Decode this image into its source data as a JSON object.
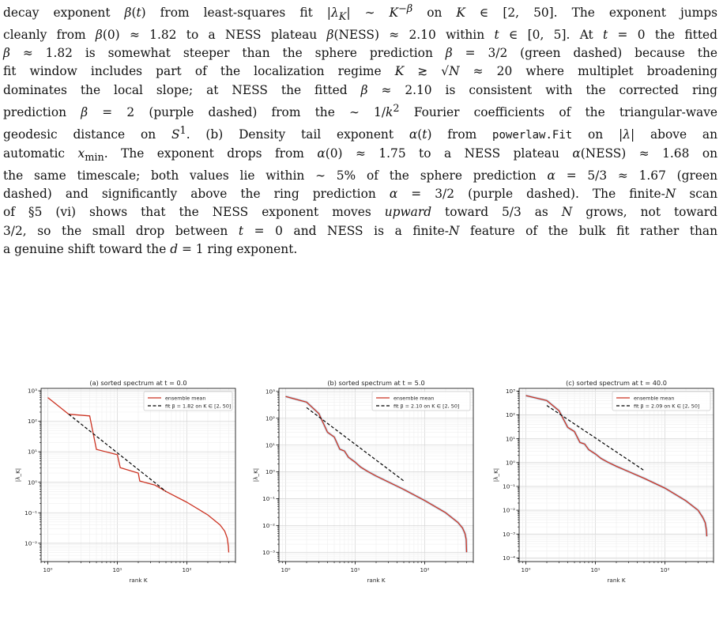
{
  "paragraph": {
    "lines": [
      "decay exponent β(t) from least-squares fit |λ_K| ∼ K^{−β} on K ∈ [2, 50]. The exponent jumps",
      "cleanly from β(0) ≈ 1.82 to a NESS plateau β(NESS) ≈ 2.10 within t ∈ [0, 5]. At t = 0 the fitted",
      "β ≈ 1.82 is somewhat steeper than the sphere prediction β = 3/2 (green dashed) because the",
      "fit window includes part of the localization regime K ≳ √N ≈ 20 where multiplet broadening",
      "dominates the local slope; at NESS the fitted β ≈ 2.10 is consistent with the corrected ring",
      "prediction β = 2 (purple dashed) from the ∼ 1/k² Fourier coefficients of the triangular-wave",
      "geodesic distance on S¹. (b) Density tail exponent α(t) from powerlaw.Fit on |λ| above an",
      "automatic x_min. The exponent drops from α(0) ≈ 1.75 to a NESS plateau α(NESS) ≈ 1.68 on",
      "the same timescale; both values lie within ∼ 5% of the sphere prediction α = 5/3 ≈ 1.67 (green",
      "dashed) and significantly above the ring prediction α = 3/2 (purple dashed). The finite-N scan",
      "of §5 (vi) shows that the NESS exponent moves upward toward 5/3 as N grows, not toward",
      "3/2, so the small drop between t = 0 and NESS is a finite-N feature of the bulk fit rather than",
      "a genuine shift toward the d = 1 ring exponent."
    ]
  },
  "chart_data": [
    {
      "type": "line",
      "title": "(a) sorted spectrum at t = 0.0",
      "xlabel": "rank K",
      "ylabel": "|λ_K|",
      "xscale": "log",
      "yscale": "log",
      "xlim": [
        0.8,
        500
      ],
      "ylim": [
        0.0025,
        1200
      ],
      "xticks": [
        1,
        10,
        100
      ],
      "xticklabels": [
        "10⁰",
        "10¹",
        "10²"
      ],
      "yticks": [
        0.01,
        0.1,
        1,
        10,
        100,
        1000
      ],
      "yticklabels": [
        "10⁻²",
        "10⁻¹",
        "10⁰",
        "10¹",
        "10²",
        "10³"
      ],
      "grid": true,
      "legend_position": "top-right",
      "series": [
        {
          "name": "ensemble mean",
          "style": "solid",
          "color": "#cc3322",
          "x": [
            1,
            2,
            4,
            5,
            10,
            11,
            20,
            21,
            35,
            50,
            100,
            200,
            300,
            350,
            380,
            395,
            400
          ],
          "y": [
            600,
            170,
            150,
            12,
            8,
            3,
            2,
            1.1,
            0.8,
            0.5,
            0.22,
            0.085,
            0.04,
            0.025,
            0.015,
            0.008,
            0.005
          ]
        },
        {
          "name": "fit β = 1.82 on K ∈ [2, 50]",
          "style": "dashed",
          "color": "#000000",
          "x": [
            2,
            50
          ],
          "y": [
            170,
            0.5
          ]
        }
      ]
    },
    {
      "type": "line",
      "title": "(b) sorted spectrum at t = 5.0",
      "xlabel": "rank K",
      "ylabel": "|λ_K|",
      "xscale": "log",
      "yscale": "log",
      "xlim": [
        0.8,
        500
      ],
      "ylim": [
        0.00045,
        1300
      ],
      "xticks": [
        1,
        10,
        100
      ],
      "xticklabels": [
        "10⁰",
        "10¹",
        "10²"
      ],
      "yticks": [
        0.001,
        0.01,
        0.1,
        1,
        10,
        100,
        1000
      ],
      "yticklabels": [
        "10⁻³",
        "10⁻²",
        "10⁻¹",
        "10⁰",
        "10¹",
        "10²",
        "10³"
      ],
      "grid": true,
      "legend_position": "top-right",
      "series": [
        {
          "name": "ensemble mean",
          "style": "solid",
          "color": "#cc3322",
          "x": [
            1,
            2,
            3,
            4,
            5,
            6,
            7,
            8,
            10,
            12,
            15,
            20,
            30,
            50,
            100,
            200,
            300,
            350,
            380,
            395,
            400
          ],
          "y": [
            650,
            400,
            150,
            30,
            20,
            7,
            6,
            3.5,
            2.3,
            1.5,
            1.05,
            0.7,
            0.42,
            0.22,
            0.085,
            0.03,
            0.013,
            0.008,
            0.005,
            0.003,
            0.001
          ]
        },
        {
          "name": "fit β = 2.10 on K ∈ [2, 50]",
          "style": "dashed",
          "color": "#000000",
          "x": [
            2,
            50
          ],
          "y": [
            250,
            0.46
          ]
        }
      ]
    },
    {
      "type": "line",
      "title": "(c) sorted spectrum at t = 40.0",
      "xlabel": "rank K",
      "ylabel": "|λ_K|",
      "xscale": "log",
      "yscale": "log",
      "xlim": [
        0.8,
        500
      ],
      "ylim": [
        7e-05,
        1300
      ],
      "xticks": [
        1,
        10,
        100
      ],
      "xticklabels": [
        "10⁰",
        "10¹",
        "10²"
      ],
      "yticks": [
        0.0001,
        0.001,
        0.01,
        0.1,
        1,
        10,
        100,
        1000
      ],
      "yticklabels": [
        "10⁻⁴",
        "10⁻³",
        "10⁻²",
        "10⁻¹",
        "10⁰",
        "10¹",
        "10²",
        "10³"
      ],
      "grid": true,
      "legend_position": "top-right",
      "series": [
        {
          "name": "ensemble mean",
          "style": "solid",
          "color": "#cc3322",
          "x": [
            1,
            2,
            3,
            4,
            5,
            6,
            7,
            8,
            10,
            12,
            15,
            20,
            30,
            50,
            100,
            200,
            300,
            350,
            380,
            395,
            400
          ],
          "y": [
            650,
            400,
            150,
            30,
            20,
            7,
            6,
            3.5,
            2.3,
            1.5,
            1.05,
            0.7,
            0.42,
            0.22,
            0.085,
            0.025,
            0.01,
            0.005,
            0.003,
            0.0015,
            0.0008
          ]
        },
        {
          "name": "fit β = 2.09 on K ∈ [2, 50]",
          "style": "dashed",
          "color": "#000000",
          "x": [
            2,
            50
          ],
          "y": [
            250,
            0.47
          ]
        }
      ]
    }
  ]
}
